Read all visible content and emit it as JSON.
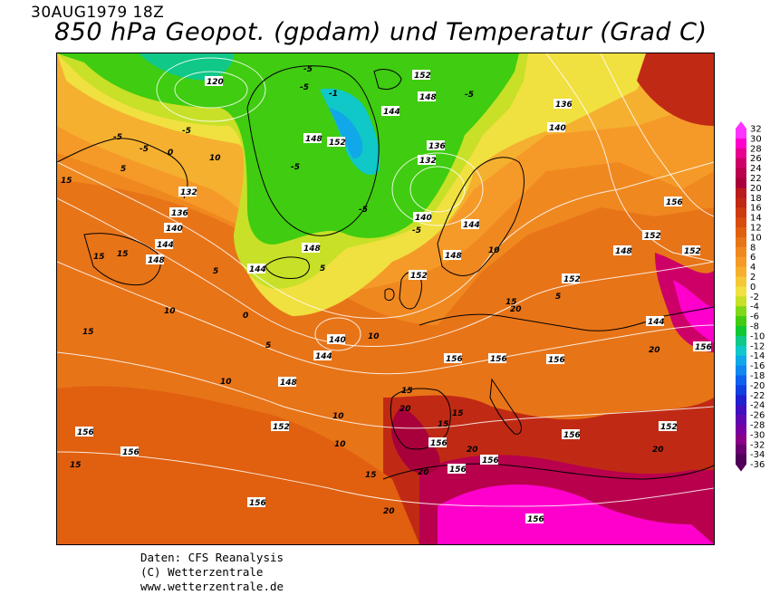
{
  "header": {
    "date": "30AUG1979 18Z",
    "title": "850 hPa Geopot. (gpdam) und  Temperatur (Grad C)"
  },
  "credits": {
    "line1": "Daten: CFS Reanalysis",
    "line2": "(C) Wetterzentrale",
    "line3": "www.wetterzentrale.de"
  },
  "legend": {
    "ticks": [
      "32",
      "30",
      "28",
      "26",
      "24",
      "22",
      "20",
      "18",
      "16",
      "14",
      "12",
      "10",
      "8",
      "6",
      "4",
      "2",
      "0",
      "-2",
      "-4",
      "-6",
      "-8",
      "-10",
      "-12",
      "-14",
      "-16",
      "-18",
      "-20",
      "-22",
      "-24",
      "-26",
      "-28",
      "-30",
      "-32",
      "-34",
      "-36"
    ],
    "colors": [
      "#ff33ff",
      "#ff00cc",
      "#e8008f",
      "#cc0066",
      "#b8004d",
      "#a8003a",
      "#b81c1c",
      "#c02a14",
      "#cc3a10",
      "#d84c10",
      "#e06010",
      "#e87418",
      "#f08820",
      "#f59a28",
      "#f5b030",
      "#f5c838",
      "#f0e040",
      "#c8e028",
      "#80d818",
      "#40cc10",
      "#10c830",
      "#10c888",
      "#10c8c8",
      "#10a8e8",
      "#1088f0",
      "#1060f0",
      "#1040e0",
      "#2020d0",
      "#4010c0",
      "#6008b0",
      "#7800a0",
      "#880088",
      "#6a0070",
      "#500058"
    ],
    "colors_extra": [
      "#500058"
    ]
  },
  "map_labels": {
    "geopotential": [
      "120",
      "152",
      "148",
      "144",
      "136",
      "132",
      "140",
      "144",
      "148",
      "152",
      "156",
      "148",
      "136",
      "140",
      "144",
      "148",
      "152",
      "144",
      "140",
      "152",
      "156",
      "156",
      "156",
      "152",
      "148",
      "156",
      "152",
      "144",
      "140",
      "152",
      "132",
      "136",
      "140",
      "148",
      "156",
      "156",
      "156",
      "156",
      "156",
      "152",
      "140",
      "148",
      "152",
      "156"
    ],
    "temperature": [
      "-5",
      "-5",
      "-5",
      "-5",
      "-5",
      "-1",
      "-5",
      "-5",
      "0",
      "5",
      "10",
      "15",
      "15",
      "15",
      "15",
      "10",
      "5",
      "0",
      "-5",
      "-5",
      "5",
      "10",
      "15",
      "20",
      "20",
      "15",
      "10",
      "5",
      "15",
      "20",
      "15",
      "10",
      "15",
      "20",
      "20",
      "15",
      "10",
      "5",
      "15",
      "20",
      "20"
    ]
  }
}
